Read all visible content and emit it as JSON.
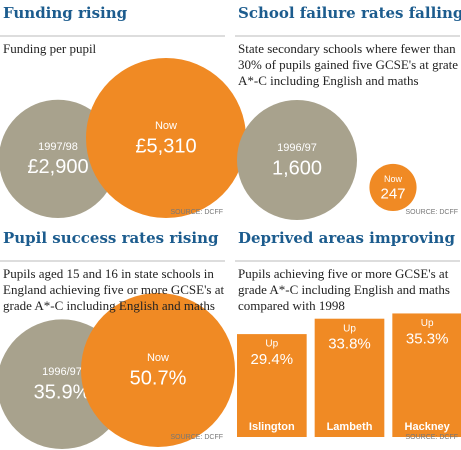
{
  "chart_data": [
    {
      "type": "bubble",
      "title": "Funding rising",
      "subtitle": "Funding per pupil",
      "categories": [
        "1997/98",
        "Now"
      ],
      "values": [
        2900,
        5310
      ],
      "value_labels": [
        "£2,900",
        "£5,310"
      ],
      "colors": [
        "#a8a28d",
        "#f08a24"
      ],
      "source": "SOURCE: DCFF"
    },
    {
      "type": "bubble",
      "title": "School failure rates falling",
      "subtitle": "State secondary schools where fewer than 30% of pupils gained five GCSE's at grate A*-C including English and maths",
      "categories": [
        "1996/97",
        "Now"
      ],
      "values": [
        1600,
        247
      ],
      "value_labels": [
        "1,600",
        "247"
      ],
      "colors": [
        "#a8a28d",
        "#f08a24"
      ],
      "source": "SOURCE: DCFF"
    },
    {
      "type": "bubble",
      "title": "Pupil success rates rising",
      "subtitle": "Pupils aged 15 and 16 in state schools in England achieving five or more GCSE's at grade A*-C including English and maths",
      "categories": [
        "1996/97",
        "Now"
      ],
      "values": [
        35.9,
        50.7
      ],
      "value_labels": [
        "35.9%",
        "50.7%"
      ],
      "colors": [
        "#a8a28d",
        "#f08a24"
      ],
      "source": "SOURCE: DCFF"
    },
    {
      "type": "bar",
      "title": "Deprived areas improving",
      "subtitle": "Pupils achieving five or more GCSE's at grade A*-C including English and maths compared with 1998",
      "categories": [
        "Islington",
        "Lambeth",
        "Hackney"
      ],
      "values": [
        29.4,
        33.8,
        35.3
      ],
      "value_labels": [
        "29.4%",
        "33.8%",
        "35.3%"
      ],
      "bar_label": "Up",
      "color": "#f08a24",
      "source": "SOURCE: DCFF"
    }
  ]
}
